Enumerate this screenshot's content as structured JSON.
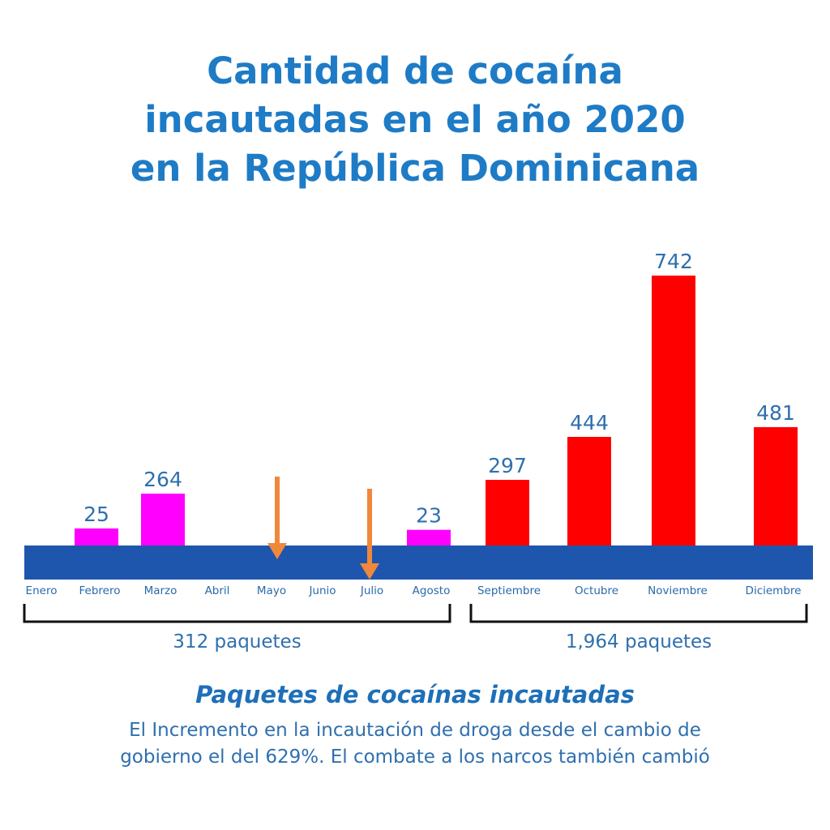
{
  "chart_data": {
    "type": "bar",
    "title": [
      "Cantidad de cocaína",
      "incautadas en el año 2020",
      "en la República Dominicana"
    ],
    "categories": [
      "Enero",
      "Febrero",
      "Marzo",
      "Abril",
      "Mayo",
      "Junio",
      "Julio",
      "Agosto",
      "Septiembre",
      "Octubre",
      "Noviembre",
      "Diciembre"
    ],
    "values": [
      null,
      25,
      264,
      null,
      null,
      null,
      null,
      23,
      297,
      444,
      742,
      481
    ],
    "bar_colors": {
      "before_september": "#ff00ff",
      "from_september": "#ff0000"
    },
    "axis_band_color": "#1f56ad",
    "arrow_color": "#f0883c",
    "arrows_at": [
      "Mayo",
      "Julio"
    ],
    "groups": [
      {
        "label": "312 paquetes",
        "from": "Enero",
        "to": "Agosto"
      },
      {
        "label": "1,964 paquetes",
        "from": "Septiembre",
        "to": "Diciembre"
      }
    ],
    "subtitle": "Paquetes de cocaínas incautadas",
    "note": [
      "El Incremento en la incautación de droga desde el cambio de",
      "gobierno el del 629%. El combate a los narcos también cambió"
    ]
  }
}
